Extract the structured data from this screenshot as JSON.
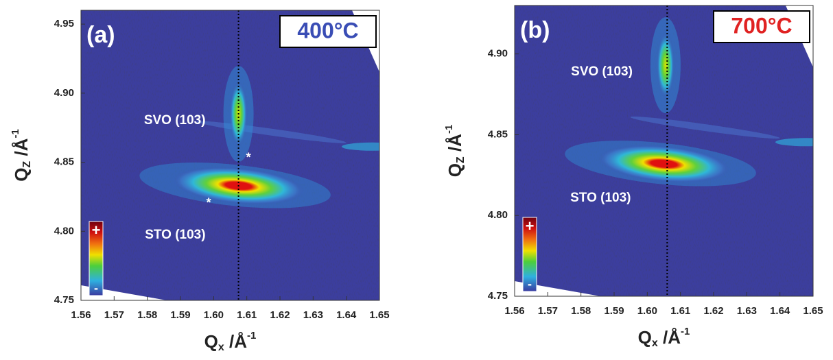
{
  "chart_data": [
    {
      "type": "heatmap",
      "panel_label": "(a)",
      "temperature": "400°C",
      "temperature_color": "#3a4db5",
      "xlabel": {
        "symbol": "Q",
        "subscript": "x",
        "unit": " /Å",
        "exponent": "-1"
      },
      "ylabel": {
        "symbol": "Q",
        "subscript": "Z",
        "unit": " /Å",
        "exponent": "-1"
      },
      "xlim": [
        1.56,
        1.65
      ],
      "ylim": [
        4.75,
        4.96
      ],
      "xticks": [
        1.56,
        1.57,
        1.58,
        1.59,
        {
          "value": 1.6,
          "label": "1.60"
        },
        1.61,
        1.62,
        1.63,
        1.64,
        1.65
      ],
      "yticks": [
        4.75,
        {
          "value": 4.8,
          "label": "4.80"
        },
        4.85,
        {
          "value": 4.9,
          "label": "4.90"
        },
        4.95
      ],
      "vline": 1.6075,
      "peaks": [
        {
          "label": "SVO (103)",
          "x": 1.6075,
          "y": 4.885
        },
        {
          "label": "STO (103)",
          "x": 1.6075,
          "y": 4.833
        }
      ],
      "markers": [
        {
          "text": "*",
          "x": 1.6105,
          "y": 4.855
        },
        {
          "text": "*",
          "x": 1.5985,
          "y": 4.822
        }
      ],
      "colorbar": {
        "max_label": "+",
        "min_label": "-"
      }
    },
    {
      "type": "heatmap",
      "panel_label": "(b)",
      "temperature": "700°C",
      "temperature_color": "#e02222",
      "xlabel": {
        "symbol": "Q",
        "subscript": "x",
        "unit": " /Å",
        "exponent": "-1"
      },
      "ylabel": {
        "symbol": "Q",
        "subscript": "Z",
        "unit": " /Å",
        "exponent": "-1"
      },
      "xlim": [
        1.56,
        1.65
      ],
      "ylim": [
        4.75,
        4.93
      ],
      "xticks": [
        1.56,
        1.57,
        1.58,
        1.59,
        {
          "value": 1.6,
          "label": "1.60"
        },
        1.61,
        1.62,
        1.63,
        1.64,
        1.65
      ],
      "yticks": [
        4.75,
        {
          "value": 4.8,
          "label": "4.80"
        },
        4.85,
        {
          "value": 4.9,
          "label": "4.90"
        }
      ],
      "vline": 1.606,
      "peaks": [
        {
          "label": "SVO (103)",
          "x": 1.6055,
          "y": 4.893
        },
        {
          "label": "STO (103)",
          "x": 1.605,
          "y": 4.832
        }
      ],
      "markers": [],
      "colorbar": {
        "max_label": "+",
        "min_label": "-"
      }
    }
  ]
}
